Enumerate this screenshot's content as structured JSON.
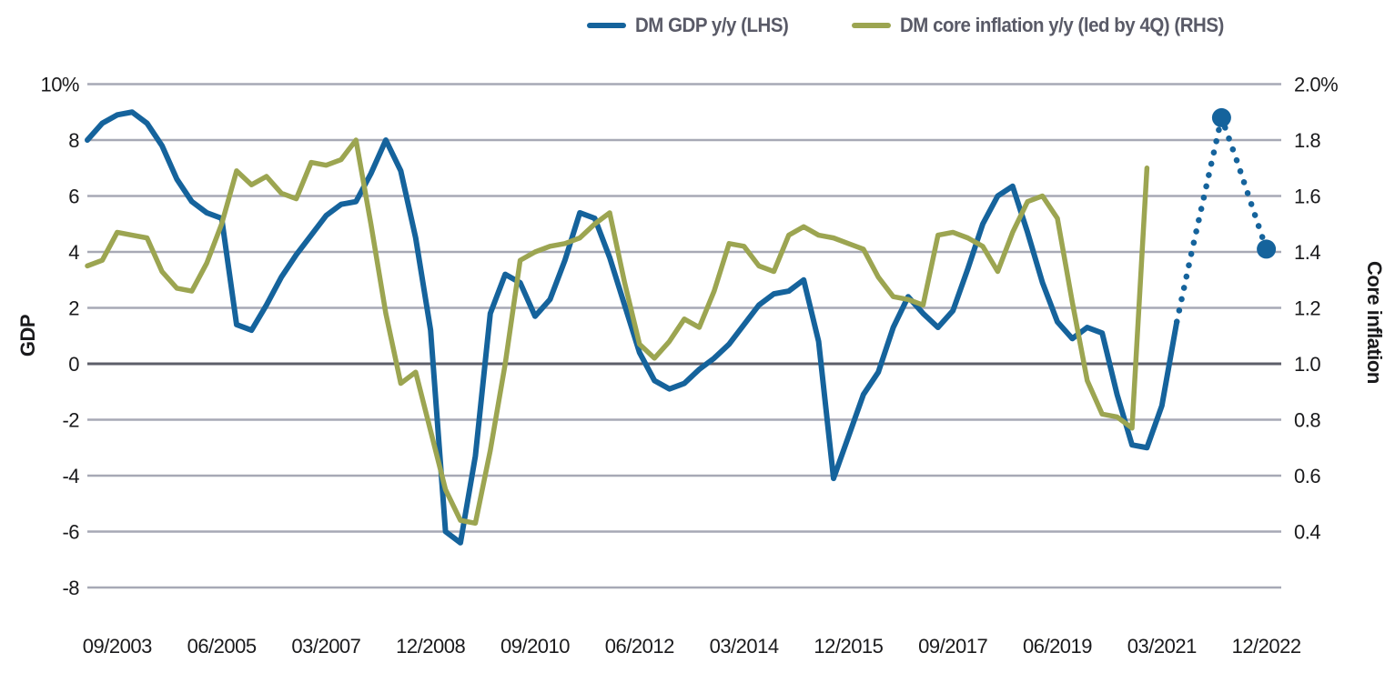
{
  "chart_data": {
    "type": "line",
    "title": "",
    "legend_position": "top-center",
    "grid": {
      "show": true,
      "color": "#A7A9B5",
      "zero_line_color": "#5C5E69"
    },
    "colors": {
      "gdp_line": "#15639C",
      "inflation_line": "#9CA551",
      "tick_text": "#1A1A1C",
      "legend_text": "#595A67"
    },
    "legend": [
      {
        "label": "DM GDP y/y (LHS)",
        "color": "#15639C"
      },
      {
        "label": "DM core inflation y/y (led by 4Q) (RHS)",
        "color": "#9CA551"
      }
    ],
    "left_axis": {
      "title": "GDP",
      "tick_labels": [
        "10%",
        "8",
        "6",
        "4",
        "2",
        "0",
        "-2",
        "-4",
        "-6",
        "-8"
      ],
      "tick_values": [
        10,
        8,
        6,
        4,
        2,
        0,
        -2,
        -4,
        -6,
        -8
      ],
      "range": [
        -8,
        10
      ]
    },
    "right_axis": {
      "title": "Core inflation",
      "tick_labels": [
        "2.0%",
        "1.8",
        "1.6",
        "1.4",
        "1.2",
        "1.0",
        "0.8",
        "0.6",
        "0.4"
      ],
      "tick_values": [
        2.0,
        1.8,
        1.6,
        1.4,
        1.2,
        1.0,
        0.8,
        0.6,
        0.4
      ],
      "range": [
        0.4,
        2.2
      ],
      "alignment_note": "right value r sits on same gridline as left value (r-1.0)*10"
    },
    "x_axis": {
      "unit": "quarterly",
      "n_points": 80,
      "tick_labels": [
        "09/2003",
        "06/2005",
        "03/2007",
        "12/2008",
        "09/2010",
        "06/2012",
        "03/2014",
        "12/2015",
        "09/2017",
        "06/2019",
        "03/2021",
        "12/2022"
      ],
      "tick_indices": [
        2,
        9,
        16,
        23,
        30,
        37,
        44,
        51,
        58,
        65,
        72,
        79
      ]
    },
    "series": [
      {
        "name": "DM GDP y/y (LHS)",
        "axis": "left",
        "solid_until_index": 73,
        "dotted_from_index": 73,
        "marker_indices": [
          76,
          79
        ],
        "values": [
          8.0,
          8.6,
          8.9,
          9.0,
          8.6,
          7.8,
          6.6,
          5.8,
          5.4,
          5.2,
          1.4,
          1.2,
          2.1,
          3.1,
          3.9,
          4.6,
          5.3,
          5.7,
          5.8,
          6.8,
          8.0,
          6.9,
          4.5,
          1.2,
          -6.0,
          -6.4,
          -3.3,
          1.8,
          3.2,
          2.9,
          1.7,
          2.3,
          3.7,
          5.4,
          5.2,
          3.8,
          2.1,
          0.4,
          -0.6,
          -0.9,
          -0.7,
          -0.2,
          0.2,
          0.7,
          1.4,
          2.1,
          2.5,
          2.6,
          3.0,
          0.8,
          -4.1,
          -2.6,
          -1.1,
          -0.3,
          1.3,
          2.4,
          1.8,
          1.3,
          1.9,
          3.4,
          5.0,
          6.0,
          6.35,
          4.7,
          2.9,
          1.5,
          0.9,
          1.3,
          1.1,
          -1.1,
          -2.9,
          -3.0,
          -1.5,
          1.5,
          4.0,
          6.4,
          8.8,
          7.3,
          5.7,
          4.1
        ]
      },
      {
        "name": "DM core inflation y/y (led by 4Q) (RHS)",
        "axis": "right",
        "values": [
          1.35,
          1.37,
          1.47,
          1.46,
          1.45,
          1.33,
          1.27,
          1.26,
          1.36,
          1.5,
          1.69,
          1.64,
          1.67,
          1.61,
          1.59,
          1.72,
          1.71,
          1.73,
          1.8,
          1.5,
          1.18,
          0.93,
          0.97,
          0.76,
          0.55,
          0.44,
          0.43,
          0.69,
          1.0,
          1.37,
          1.4,
          1.42,
          1.43,
          1.45,
          1.5,
          1.54,
          1.29,
          1.07,
          1.02,
          1.08,
          1.16,
          1.13,
          1.26,
          1.43,
          1.42,
          1.35,
          1.33,
          1.46,
          1.49,
          1.46,
          1.45,
          1.43,
          1.41,
          1.31,
          1.24,
          1.23,
          1.21,
          1.46,
          1.47,
          1.45,
          1.42,
          1.33,
          1.47,
          1.58,
          1.6,
          1.52,
          1.22,
          0.94,
          0.82,
          0.81,
          0.77,
          1.7
        ]
      }
    ]
  }
}
